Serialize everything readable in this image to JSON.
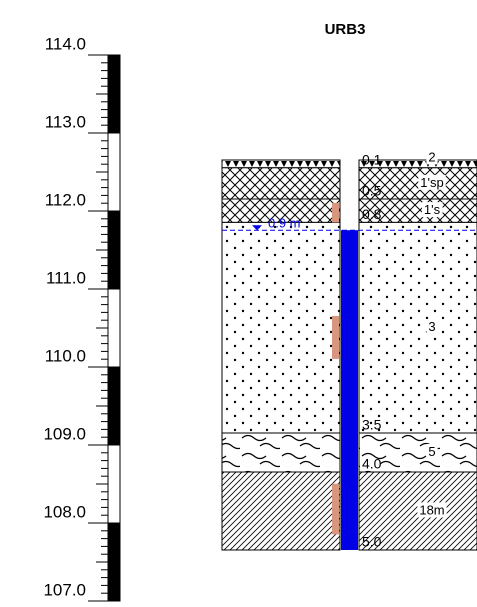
{
  "title": "URB3",
  "scale": [
    {
      "value": 114,
      "label": "114.0"
    },
    {
      "value": 113,
      "label": "113.0"
    },
    {
      "value": 112,
      "label": "112.0"
    },
    {
      "value": 111,
      "label": "111.0"
    },
    {
      "value": 110,
      "label": "110.0"
    },
    {
      "value": 109,
      "label": "109.0"
    },
    {
      "value": 108,
      "label": "108.0"
    },
    {
      "value": 107,
      "label": "107.0"
    }
  ],
  "layers": [
    {
      "top": 0,
      "bottom": 0.1,
      "bottom_label": "0.1",
      "label": "2",
      "pattern": "topsoil"
    },
    {
      "top": 0.1,
      "bottom": 0.5,
      "bottom_label": "0.5",
      "label": "1'sp",
      "pattern": "cross"
    },
    {
      "top": 0.5,
      "bottom": 0.8,
      "bottom_label": "0.8",
      "label": "1's",
      "pattern": "cross"
    },
    {
      "top": 0.8,
      "bottom": 3.5,
      "bottom_label": "3.5",
      "label": "3",
      "pattern": "dots"
    },
    {
      "top": 3.5,
      "bottom": 4.0,
      "bottom_label": "4.0",
      "label": "5",
      "pattern": "waves"
    },
    {
      "top": 4.0,
      "bottom": 5.0,
      "bottom_label": "5.0",
      "label": "18m",
      "pattern": "diag"
    }
  ],
  "water": {
    "depth": 0.9,
    "label": "0.9 m"
  }
}
